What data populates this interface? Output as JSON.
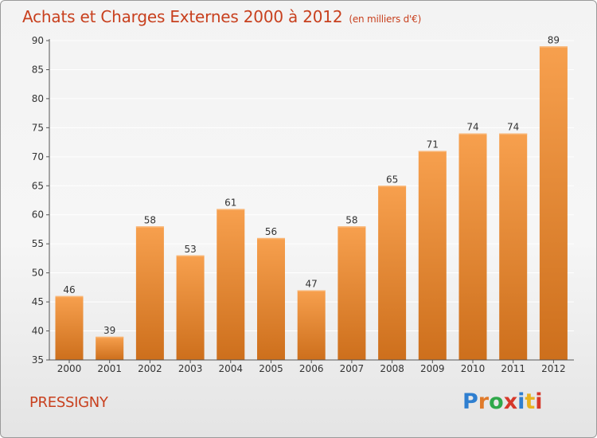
{
  "header": {
    "title": "Achats et Charges Externes 2000 à 2012",
    "unit": "(en milliers d'€)"
  },
  "footer": {
    "commune": "PRESSIGNY",
    "brand": "Proxiti",
    "brand_colors": [
      "#2f7fd0",
      "#e07a2a",
      "#2fa84a",
      "#d6382a",
      "#2f7fd0",
      "#e9b21f",
      "#d6382a"
    ]
  },
  "colors": {
    "title": "#c8401e",
    "bar_light": "#f7a04e",
    "bar_dark": "#cd6f1c",
    "grid": "#ffffff",
    "axis": "#555555"
  },
  "chart_data": {
    "type": "bar",
    "categories": [
      "2000",
      "2001",
      "2002",
      "2003",
      "2004",
      "2005",
      "2006",
      "2007",
      "2008",
      "2009",
      "2010",
      "2011",
      "2012"
    ],
    "values": [
      46,
      39,
      58,
      53,
      61,
      56,
      47,
      58,
      65,
      71,
      74,
      74,
      89
    ],
    "ylim": [
      35,
      90
    ],
    "yticks": [
      35,
      40,
      45,
      50,
      55,
      60,
      65,
      70,
      75,
      80,
      85,
      90
    ],
    "grid": true,
    "data_labels": true
  }
}
